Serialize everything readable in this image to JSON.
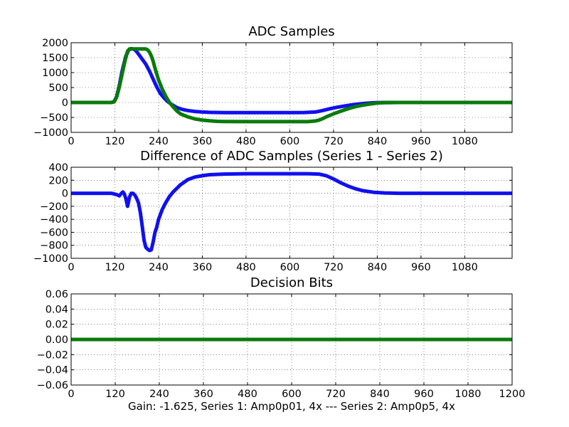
{
  "figure_caption": "Gain: -1.625, Series 1: Amp0p01, 4x --- Series 2: Amp0p5, 4x",
  "colors": {
    "blue": "#1010ee",
    "green": "#0a7a0a"
  },
  "chart_data": [
    {
      "type": "line",
      "title": "ADC Samples",
      "grid": true,
      "xlim": [
        0,
        1210
      ],
      "ylim": [
        -1000,
        2000
      ],
      "xticks": [
        "0",
        "120",
        "240",
        "360",
        "480",
        "600",
        "720",
        "840",
        "960",
        "1080"
      ],
      "yticks": [
        "2000",
        "1500",
        "1000",
        "500",
        "0",
        "−500",
        "−1000"
      ],
      "series": [
        {
          "color": "blue",
          "x": [
            0,
            110,
            118,
            125,
            132,
            140,
            150,
            158,
            165,
            170,
            175,
            180,
            186,
            195,
            205,
            215,
            225,
            235,
            245,
            255,
            265,
            275,
            290,
            305,
            320,
            340,
            360,
            380,
            420,
            480,
            540,
            600,
            640,
            670,
            690,
            710,
            730,
            750,
            770,
            790,
            810,
            830,
            850,
            900,
            1000,
            1210
          ],
          "y": [
            0,
            0,
            30,
            200,
            550,
            1050,
            1550,
            1760,
            1800,
            1790,
            1760,
            1700,
            1600,
            1450,
            1280,
            1050,
            780,
            520,
            300,
            150,
            30,
            -60,
            -170,
            -230,
            -270,
            -300,
            -320,
            -330,
            -340,
            -340,
            -340,
            -340,
            -335,
            -320,
            -270,
            -210,
            -160,
            -120,
            -80,
            -50,
            -25,
            -10,
            -3,
            0,
            0,
            0
          ]
        },
        {
          "color": "green",
          "x": [
            0,
            110,
            118,
            125,
            132,
            140,
            148,
            155,
            160,
            170,
            190,
            205,
            210,
            215,
            220,
            225,
            230,
            240,
            250,
            260,
            270,
            280,
            290,
            300,
            320,
            340,
            360,
            380,
            400,
            420,
            480,
            540,
            600,
            650,
            670,
            680,
            690,
            700,
            720,
            740,
            760,
            780,
            800,
            820,
            840,
            860,
            900,
            1000,
            1210
          ],
          "y": [
            0,
            0,
            20,
            180,
            500,
            950,
            1400,
            1720,
            1790,
            1790,
            1790,
            1790,
            1760,
            1680,
            1560,
            1380,
            1150,
            750,
            450,
            200,
            0,
            -150,
            -280,
            -380,
            -480,
            -550,
            -590,
            -615,
            -630,
            -635,
            -640,
            -640,
            -640,
            -640,
            -620,
            -590,
            -540,
            -480,
            -380,
            -290,
            -210,
            -140,
            -90,
            -50,
            -20,
            -5,
            0,
            0,
            0
          ]
        }
      ]
    },
    {
      "type": "line",
      "title": "Difference of ADC Samples (Series 1 - Series 2)",
      "grid": true,
      "xlim": [
        0,
        1210
      ],
      "ylim": [
        -1000,
        400
      ],
      "xticks": [
        "0",
        "120",
        "240",
        "360",
        "480",
        "600",
        "720",
        "840",
        "960",
        "1080"
      ],
      "yticks": [
        "400",
        "200",
        "0",
        "−200",
        "−400",
        "−600",
        "−800",
        "−1000"
      ],
      "series": [
        {
          "color": "blue",
          "x": [
            0,
            110,
            118,
            125,
            132,
            138,
            142,
            146,
            150,
            155,
            160,
            165,
            170,
            175,
            180,
            185,
            190,
            195,
            200,
            205,
            210,
            215,
            220,
            225,
            230,
            235,
            240,
            250,
            260,
            270,
            280,
            300,
            320,
            340,
            360,
            380,
            420,
            480,
            540,
            600,
            650,
            680,
            700,
            720,
            740,
            760,
            780,
            800,
            830,
            860,
            900,
            1000,
            1100,
            1210
          ],
          "y": [
            0,
            0,
            -10,
            -20,
            -40,
            0,
            20,
            -10,
            -80,
            -200,
            -60,
            0,
            0,
            -30,
            -80,
            -150,
            -300,
            -500,
            -720,
            -830,
            -860,
            -880,
            -870,
            -750,
            -600,
            -520,
            -400,
            -250,
            -140,
            -50,
            20,
            130,
            210,
            250,
            270,
            285,
            295,
            300,
            300,
            300,
            300,
            295,
            270,
            220,
            160,
            110,
            70,
            40,
            15,
            5,
            0,
            0,
            0,
            0
          ]
        }
      ]
    },
    {
      "type": "line",
      "title": "Decision Bits",
      "grid": true,
      "xlim": [
        0,
        1200
      ],
      "ylim": [
        -0.06,
        0.06
      ],
      "xticks": [
        "0",
        "120",
        "240",
        "360",
        "480",
        "600",
        "720",
        "840",
        "960",
        "1080",
        "1200"
      ],
      "yticks": [
        "0.06",
        "0.04",
        "0.02",
        "0.00",
        "−0.02",
        "−0.04",
        "−0.06"
      ],
      "series": [
        {
          "color": "green",
          "x": [
            0,
            1200
          ],
          "y": [
            0,
            0
          ]
        }
      ]
    }
  ]
}
